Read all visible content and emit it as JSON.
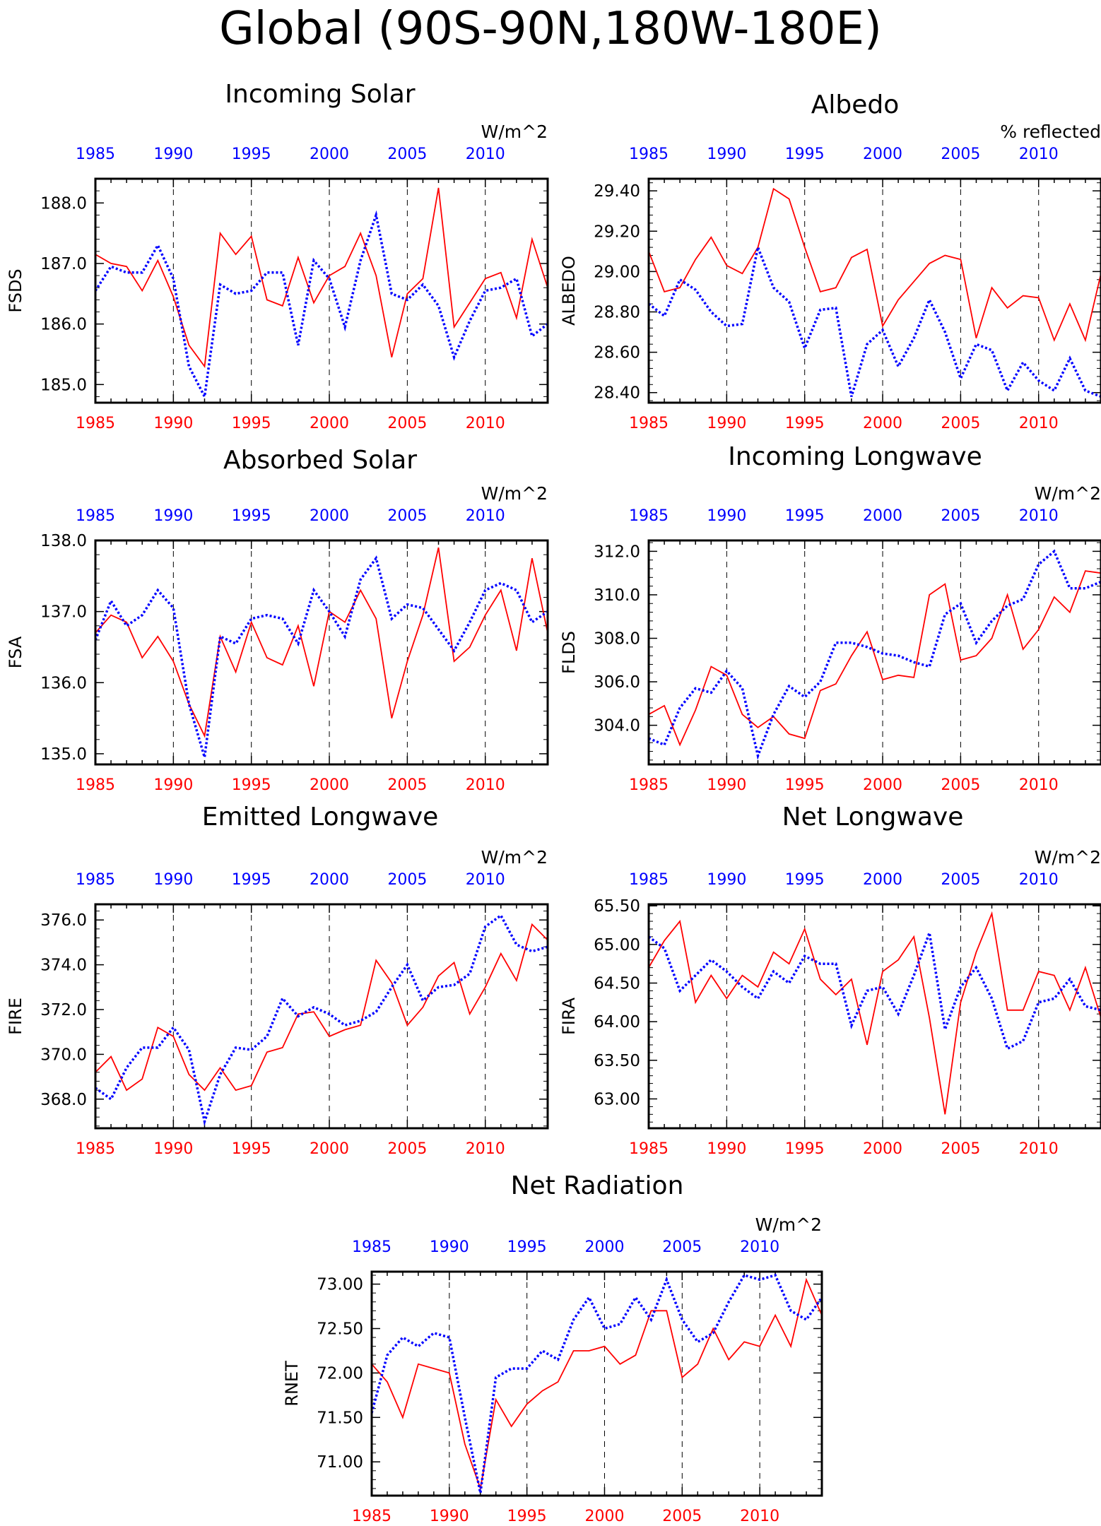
{
  "title": "Global (90S-90N,180W-180E)",
  "colors": {
    "series_a": "#ff0000",
    "series_b": "#0000ff",
    "frame": "#000000",
    "grid": "#000000"
  },
  "chart_data": [
    {
      "type": "line",
      "title": "Incoming Solar",
      "units": "W/m^2",
      "ylabel": "FSDS",
      "x": [
        1985,
        1986,
        1987,
        1988,
        1989,
        1990,
        1991,
        1992,
        1993,
        1994,
        1995,
        1996,
        1997,
        1998,
        1999,
        2000,
        2001,
        2002,
        2003,
        2004,
        2005,
        2006,
        2007,
        2008,
        2009,
        2010,
        2011,
        2012,
        2013,
        2014
      ],
      "xlim": [
        1985,
        2014
      ],
      "ylim": [
        184.7,
        188.4
      ],
      "yticks": [
        "185.0",
        "186.0",
        "187.0",
        "188.0"
      ],
      "xticks_bottom": [
        "1985",
        "1990",
        "1995",
        "2000",
        "2005",
        "2010"
      ],
      "xticks_top": [
        "1985",
        "1990",
        "1995",
        "2000",
        "2005",
        "2010"
      ],
      "grid": "dashed vertical lines at 1990, 1995, 2000, 2005, 2010",
      "series": [
        {
          "color": "red",
          "style": "solid",
          "values": [
            187.15,
            187.0,
            186.95,
            186.55,
            187.05,
            186.45,
            185.65,
            185.3,
            187.5,
            187.15,
            187.45,
            186.4,
            186.3,
            187.1,
            186.35,
            186.8,
            186.95,
            187.5,
            186.8,
            185.45,
            186.5,
            186.75,
            188.25,
            185.95,
            186.35,
            186.75,
            186.85,
            186.1,
            187.4,
            186.6
          ]
        },
        {
          "color": "blue",
          "style": "dotted",
          "values": [
            186.55,
            186.95,
            186.85,
            186.85,
            187.3,
            186.75,
            185.3,
            184.8,
            186.65,
            186.5,
            186.55,
            186.85,
            186.85,
            185.65,
            187.05,
            186.75,
            185.95,
            187.05,
            187.8,
            186.5,
            186.4,
            186.65,
            186.3,
            185.45,
            186.05,
            186.55,
            186.6,
            186.75,
            185.8,
            186.0
          ]
        }
      ]
    },
    {
      "type": "line",
      "title": "Albedo",
      "units": "% reflected",
      "ylabel": "ALBEDO",
      "x": [
        1985,
        1986,
        1987,
        1988,
        1989,
        1990,
        1991,
        1992,
        1993,
        1994,
        1995,
        1996,
        1997,
        1998,
        1999,
        2000,
        2001,
        2002,
        2003,
        2004,
        2005,
        2006,
        2007,
        2008,
        2009,
        2010,
        2011,
        2012,
        2013,
        2014
      ],
      "xlim": [
        1985,
        2014
      ],
      "ylim": [
        28.35,
        29.46
      ],
      "yticks": [
        "28.40",
        "28.60",
        "28.80",
        "29.00",
        "29.20",
        "29.40"
      ],
      "xticks_bottom": [
        "1985",
        "1990",
        "1995",
        "2000",
        "2005",
        "2010"
      ],
      "xticks_top": [
        "1985",
        "1990",
        "1995",
        "2000",
        "2005",
        "2010"
      ],
      "grid": "dashed vertical lines at 1990, 1995, 2000, 2005, 2010",
      "series": [
        {
          "color": "red",
          "style": "solid",
          "values": [
            29.1,
            28.9,
            28.92,
            29.06,
            29.17,
            29.03,
            28.99,
            29.12,
            29.41,
            29.36,
            29.12,
            28.9,
            28.92,
            29.07,
            29.11,
            28.73,
            28.86,
            28.95,
            29.04,
            29.08,
            29.06,
            28.67,
            28.92,
            28.82,
            28.88,
            28.87,
            28.66,
            28.84,
            28.66,
            28.99
          ]
        },
        {
          "color": "blue",
          "style": "dotted",
          "values": [
            28.84,
            28.78,
            28.96,
            28.91,
            28.8,
            28.73,
            28.74,
            29.12,
            28.92,
            28.85,
            28.62,
            28.81,
            28.82,
            28.38,
            28.64,
            28.71,
            28.53,
            28.67,
            28.86,
            28.7,
            28.47,
            28.64,
            28.61,
            28.41,
            28.55,
            28.46,
            28.41,
            28.57,
            28.41,
            28.38
          ]
        }
      ]
    },
    {
      "type": "line",
      "title": "Absorbed Solar",
      "units": "W/m^2",
      "ylabel": "FSA",
      "x": [
        1985,
        1986,
        1987,
        1988,
        1989,
        1990,
        1991,
        1992,
        1993,
        1994,
        1995,
        1996,
        1997,
        1998,
        1999,
        2000,
        2001,
        2002,
        2003,
        2004,
        2005,
        2006,
        2007,
        2008,
        2009,
        2010,
        2011,
        2012,
        2013,
        2014
      ],
      "xlim": [
        1985,
        2014
      ],
      "ylim": [
        134.85,
        138.0
      ],
      "yticks": [
        "135.0",
        "136.0",
        "137.0",
        "138.0"
      ],
      "xticks_bottom": [
        "1985",
        "1990",
        "1995",
        "2000",
        "2005",
        "2010"
      ],
      "xticks_top": [
        "1985",
        "1990",
        "1995",
        "2000",
        "2005",
        "2010"
      ],
      "grid": "dashed vertical lines at 1990, 1995, 2000, 2005, 2010",
      "series": [
        {
          "color": "red",
          "style": "solid",
          "values": [
            136.7,
            136.95,
            136.85,
            136.35,
            136.65,
            136.3,
            135.7,
            135.25,
            136.65,
            136.15,
            136.85,
            136.35,
            136.25,
            136.8,
            135.95,
            137.0,
            136.85,
            137.3,
            136.9,
            135.5,
            136.3,
            136.95,
            137.9,
            136.3,
            136.5,
            136.95,
            137.3,
            136.45,
            137.75,
            136.7
          ]
        },
        {
          "color": "blue",
          "style": "dotted",
          "values": [
            136.6,
            137.15,
            136.8,
            136.95,
            137.3,
            137.05,
            135.7,
            134.95,
            136.65,
            136.55,
            136.9,
            136.95,
            136.9,
            136.55,
            137.3,
            137.0,
            136.65,
            137.45,
            137.75,
            136.9,
            137.1,
            137.05,
            136.75,
            136.45,
            136.85,
            137.3,
            137.4,
            137.3,
            136.85,
            137.0
          ]
        }
      ]
    },
    {
      "type": "line",
      "title": "Incoming Longwave",
      "units": "W/m^2",
      "ylabel": "FLDS",
      "x": [
        1985,
        1986,
        1987,
        1988,
        1989,
        1990,
        1991,
        1992,
        1993,
        1994,
        1995,
        1996,
        1997,
        1998,
        1999,
        2000,
        2001,
        2002,
        2003,
        2004,
        2005,
        2006,
        2007,
        2008,
        2009,
        2010,
        2011,
        2012,
        2013,
        2014
      ],
      "xlim": [
        1985,
        2014
      ],
      "ylim": [
        302.2,
        312.5
      ],
      "yticks": [
        "304.0",
        "306.0",
        "308.0",
        "310.0",
        "312.0"
      ],
      "xticks_bottom": [
        "1985",
        "1990",
        "1995",
        "2000",
        "2005",
        "2010"
      ],
      "xticks_top": [
        "1985",
        "1990",
        "1995",
        "2000",
        "2005",
        "2010"
      ],
      "grid": "dashed vertical lines at 1990, 1995, 2000, 2005, 2010",
      "series": [
        {
          "color": "red",
          "style": "solid",
          "values": [
            304.5,
            304.9,
            303.1,
            304.7,
            306.7,
            306.3,
            304.5,
            303.9,
            304.4,
            303.6,
            303.4,
            305.6,
            305.9,
            307.2,
            308.3,
            306.1,
            306.3,
            306.2,
            310.0,
            310.5,
            307.0,
            307.2,
            308.0,
            310.0,
            307.5,
            308.4,
            309.9,
            309.2,
            311.1,
            311.0
          ]
        },
        {
          "color": "blue",
          "style": "dotted",
          "values": [
            303.4,
            303.1,
            304.8,
            305.7,
            305.5,
            306.5,
            305.7,
            302.6,
            304.5,
            305.8,
            305.3,
            306.0,
            307.8,
            307.8,
            307.6,
            307.3,
            307.2,
            306.9,
            306.7,
            309.1,
            309.6,
            307.8,
            308.8,
            309.5,
            309.8,
            311.4,
            312.0,
            310.3,
            310.3,
            310.6
          ]
        }
      ]
    },
    {
      "type": "line",
      "title": "Emitted Longwave",
      "units": "W/m^2",
      "ylabel": "FIRE",
      "x": [
        1985,
        1986,
        1987,
        1988,
        1989,
        1990,
        1991,
        1992,
        1993,
        1994,
        1995,
        1996,
        1997,
        1998,
        1999,
        2000,
        2001,
        2002,
        2003,
        2004,
        2005,
        2006,
        2007,
        2008,
        2009,
        2010,
        2011,
        2012,
        2013,
        2014
      ],
      "xlim": [
        1985,
        2014
      ],
      "ylim": [
        366.7,
        376.7
      ],
      "yticks": [
        "368.0",
        "370.0",
        "372.0",
        "374.0",
        "376.0"
      ],
      "xticks_bottom": [
        "1985",
        "1990",
        "1995",
        "2000",
        "2005",
        "2010"
      ],
      "xticks_top": [
        "1985",
        "1990",
        "1995",
        "2000",
        "2005",
        "2010"
      ],
      "grid": "dashed vertical lines at 1990, 1995, 2000, 2005, 2010",
      "series": [
        {
          "color": "red",
          "style": "solid",
          "values": [
            369.2,
            369.9,
            368.4,
            368.9,
            371.2,
            370.8,
            369.1,
            368.4,
            369.4,
            368.4,
            368.6,
            370.1,
            370.3,
            371.8,
            371.9,
            370.8,
            371.1,
            371.3,
            374.2,
            373.2,
            371.3,
            372.1,
            373.5,
            374.1,
            371.8,
            373.0,
            374.5,
            373.3,
            375.8,
            375.1
          ]
        },
        {
          "color": "blue",
          "style": "dotted",
          "values": [
            368.5,
            368.0,
            369.4,
            370.3,
            370.3,
            371.2,
            370.2,
            367.0,
            369.1,
            370.3,
            370.2,
            370.8,
            372.5,
            371.7,
            372.1,
            371.8,
            371.3,
            371.5,
            371.9,
            373.0,
            374.0,
            372.4,
            373.0,
            373.1,
            373.6,
            375.7,
            376.2,
            374.9,
            374.6,
            374.8
          ]
        }
      ]
    },
    {
      "type": "line",
      "title": "Net Longwave",
      "units": "W/m^2",
      "ylabel": "FIRA",
      "x": [
        1985,
        1986,
        1987,
        1988,
        1989,
        1990,
        1991,
        1992,
        1993,
        1994,
        1995,
        1996,
        1997,
        1998,
        1999,
        2000,
        2001,
        2002,
        2003,
        2004,
        2005,
        2006,
        2007,
        2008,
        2009,
        2010,
        2011,
        2012,
        2013,
        2014
      ],
      "xlim": [
        1985,
        2014
      ],
      "ylim": [
        62.62,
        65.52
      ],
      "yticks": [
        "63.00",
        "63.50",
        "64.00",
        "64.50",
        "65.00",
        "65.50"
      ],
      "xticks_bottom": [
        "1985",
        "1990",
        "1995",
        "2000",
        "2005",
        "2010"
      ],
      "xticks_top": [
        "1985",
        "1990",
        "1995",
        "2000",
        "2005",
        "2010"
      ],
      "grid": "dashed vertical lines at 1990, 1995, 2000, 2005, 2010",
      "series": [
        {
          "color": "red",
          "style": "solid",
          "values": [
            64.7,
            65.05,
            65.3,
            64.25,
            64.6,
            64.3,
            64.6,
            64.45,
            64.9,
            64.75,
            65.2,
            64.55,
            64.35,
            64.55,
            63.7,
            64.65,
            64.8,
            65.1,
            64.05,
            62.8,
            64.25,
            64.9,
            65.4,
            64.15,
            64.15,
            64.65,
            64.6,
            64.15,
            64.7,
            64.05
          ]
        },
        {
          "color": "blue",
          "style": "dotted",
          "values": [
            65.1,
            64.95,
            64.4,
            64.6,
            64.8,
            64.65,
            64.45,
            64.3,
            64.65,
            64.5,
            64.85,
            64.75,
            64.75,
            63.95,
            64.4,
            64.45,
            64.1,
            64.6,
            65.15,
            63.9,
            64.45,
            64.7,
            64.3,
            63.65,
            63.75,
            64.25,
            64.3,
            64.55,
            64.2,
            64.15
          ]
        }
      ]
    },
    {
      "type": "line",
      "title": "Net Radiation",
      "units": "W/m^2",
      "ylabel": "RNET",
      "x": [
        1985,
        1986,
        1987,
        1988,
        1989,
        1990,
        1991,
        1992,
        1993,
        1994,
        1995,
        1996,
        1997,
        1998,
        1999,
        2000,
        2001,
        2002,
        2003,
        2004,
        2005,
        2006,
        2007,
        2008,
        2009,
        2010,
        2011,
        2012,
        2013,
        2014
      ],
      "xlim": [
        1985,
        2014
      ],
      "ylim": [
        70.62,
        73.14
      ],
      "yticks": [
        "71.00",
        "71.50",
        "72.00",
        "72.50",
        "73.00"
      ],
      "xticks_bottom": [
        "1985",
        "1990",
        "1995",
        "2000",
        "2005",
        "2010"
      ],
      "xticks_top": [
        "1985",
        "1990",
        "1995",
        "2000",
        "2005",
        "2010"
      ],
      "grid": "dashed vertical lines at 1990, 1995, 2000, 2005, 2010",
      "series": [
        {
          "color": "red",
          "style": "solid",
          "values": [
            72.1,
            71.9,
            71.5,
            72.1,
            72.05,
            72.0,
            71.2,
            70.7,
            71.7,
            71.4,
            71.65,
            71.8,
            71.9,
            72.25,
            72.25,
            72.3,
            72.1,
            72.2,
            72.7,
            72.7,
            71.95,
            72.1,
            72.5,
            72.15,
            72.35,
            72.3,
            72.65,
            72.3,
            73.05,
            72.65
          ]
        },
        {
          "color": "blue",
          "style": "dotted",
          "values": [
            71.55,
            72.2,
            72.4,
            72.3,
            72.45,
            72.4,
            71.5,
            70.65,
            71.95,
            72.05,
            72.05,
            72.25,
            72.15,
            72.6,
            72.85,
            72.5,
            72.55,
            72.85,
            72.6,
            73.05,
            72.6,
            72.35,
            72.45,
            72.8,
            73.1,
            73.05,
            73.1,
            72.7,
            72.6,
            72.85
          ]
        }
      ]
    }
  ]
}
